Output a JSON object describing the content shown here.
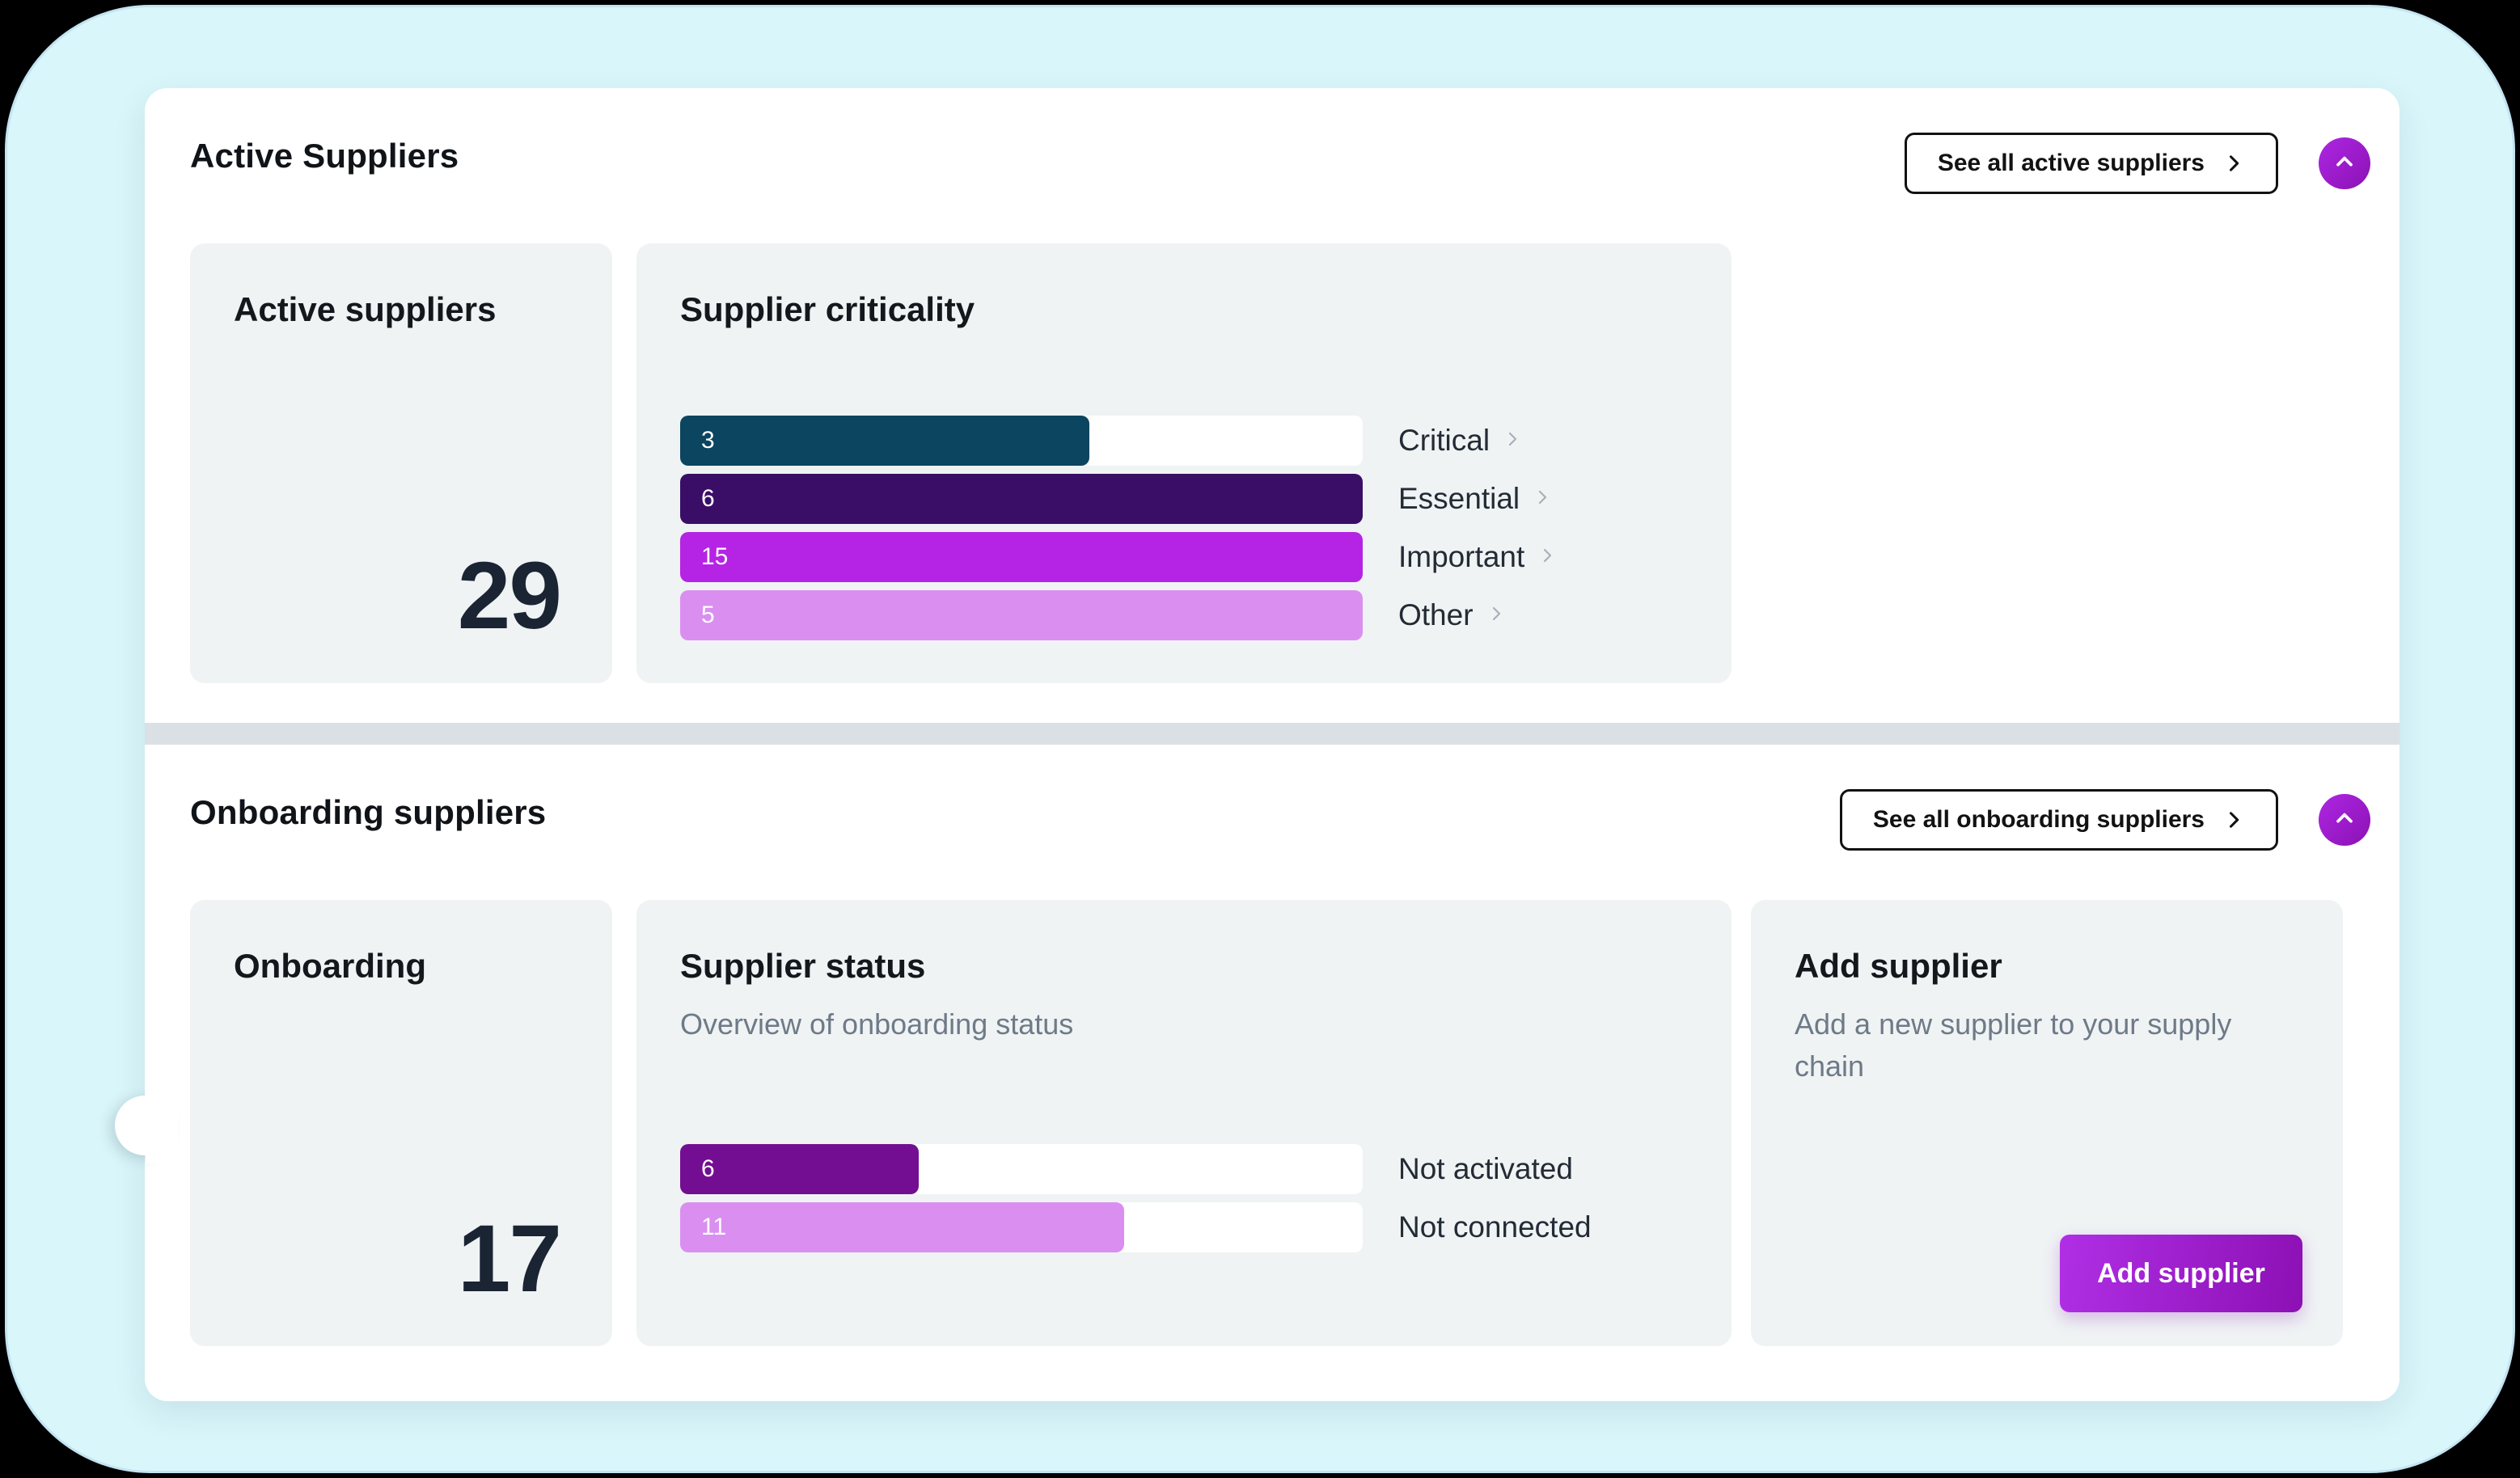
{
  "colors": {
    "page_background": "#000000",
    "canvas_background": "#d9f6fa",
    "panel_background": "#ffffff",
    "card_background": "#eff3f4",
    "divider": "#dbe0e4",
    "accent_purple": "#ad27e3",
    "accent_purple_dark": "#8c11b4",
    "big_number_text": "#1b2433",
    "bar_critical": "#0c455f",
    "bar_essential": "#3a0e66",
    "bar_important": "#b524e4",
    "bar_other": "#da8ff0",
    "bar_not_activated": "#730e93",
    "bar_not_connected": "#da8ff0"
  },
  "icons": {
    "see_all_chevron": "chevron-right-icon",
    "collapse_chevron": "chevron-up-icon",
    "label_chevron": "chevron-right-icon"
  },
  "active_section": {
    "title": "Active Suppliers",
    "see_all_label": "See all active suppliers",
    "count_card": {
      "title": "Active suppliers",
      "value": "29"
    },
    "criticality_card": {
      "title": "Supplier criticality",
      "bars": [
        {
          "label": "Critical",
          "value": "3",
          "fill_pct": 60,
          "color": "#0c455f"
        },
        {
          "label": "Essential",
          "value": "6",
          "fill_pct": 100,
          "color": "#3a0e66"
        },
        {
          "label": "Important",
          "value": "15",
          "fill_pct": 100,
          "color": "#b524e4"
        },
        {
          "label": "Other",
          "value": "5",
          "fill_pct": 100,
          "color": "#da8ff0"
        }
      ]
    }
  },
  "onboarding_section": {
    "title": "Onboarding suppliers",
    "see_all_label": "See all onboarding suppliers",
    "count_card": {
      "title": "Onboarding",
      "value": "17"
    },
    "status_card": {
      "title": "Supplier status",
      "subtitle": "Overview of onboarding status",
      "bars": [
        {
          "label": "Not activated",
          "value": "6",
          "fill_pct": 35,
          "color": "#730e93"
        },
        {
          "label": "Not connected",
          "value": "11",
          "fill_pct": 65,
          "color": "#da8ff0"
        }
      ]
    },
    "add_card": {
      "title": "Add supplier",
      "subtitle": "Add a new supplier to your supply chain",
      "button_label": "Add supplier"
    }
  },
  "chart_data": [
    {
      "type": "bar",
      "title": "Supplier criticality",
      "categories": [
        "Critical",
        "Essential",
        "Important",
        "Other"
      ],
      "values": [
        3,
        6,
        15,
        5
      ],
      "orientation": "horizontal"
    },
    {
      "type": "bar",
      "title": "Supplier status",
      "subtitle": "Overview of onboarding status",
      "categories": [
        "Not activated",
        "Not connected"
      ],
      "values": [
        6,
        11
      ],
      "orientation": "horizontal"
    }
  ]
}
